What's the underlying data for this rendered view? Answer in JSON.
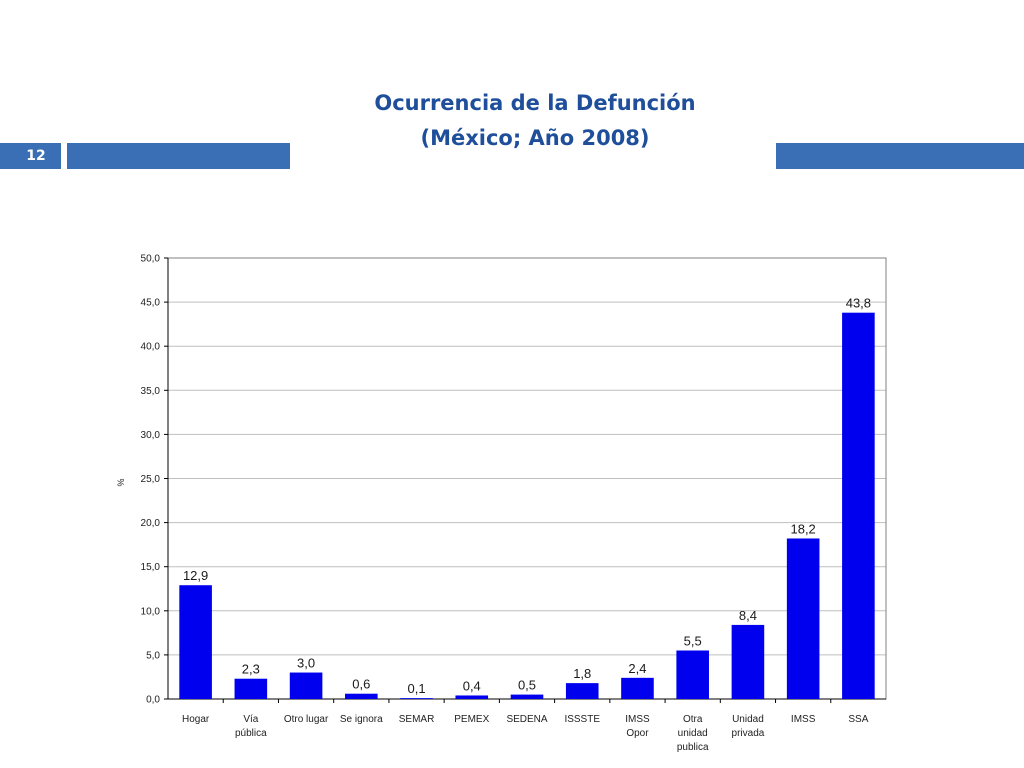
{
  "slide": {
    "number": "12"
  },
  "title": {
    "line1": "Ocurrencia de la Defunción",
    "line2": "(México; Año 2008)"
  },
  "colors": {
    "bar": "#0000ee",
    "band": "#3a6fb5",
    "title": "#1f4e9a",
    "grid": "#bfbfbf"
  },
  "chart_data": {
    "type": "bar",
    "categories": [
      [
        "Hogar"
      ],
      [
        "Vía",
        "pública"
      ],
      [
        "Otro lugar"
      ],
      [
        "Se ignora"
      ],
      [
        "SEMAR"
      ],
      [
        "PEMEX"
      ],
      [
        "SEDENA"
      ],
      [
        "ISSSTE"
      ],
      [
        "IMSS",
        "Opor"
      ],
      [
        "Otra",
        "unidad",
        "publica"
      ],
      [
        "Unidad",
        "privada"
      ],
      [
        "IMSS"
      ],
      [
        "SSA"
      ]
    ],
    "values": [
      12.9,
      2.3,
      3.0,
      0.6,
      0.1,
      0.4,
      0.5,
      1.8,
      2.4,
      5.5,
      8.4,
      18.2,
      43.8
    ],
    "value_labels": [
      "12,9",
      "2,3",
      "3,0",
      "0,6",
      "0,1",
      "0,4",
      "0,5",
      "1,8",
      "2,4",
      "5,5",
      "8,4",
      "18,2",
      "43,8"
    ],
    "y_ticks": [
      "0,0",
      "5,0",
      "10,0",
      "15,0",
      "20,0",
      "25,0",
      "30,0",
      "35,0",
      "40,0",
      "45,0",
      "50,0"
    ],
    "ylabel": "%",
    "xlabel": "",
    "ylim": [
      0,
      50
    ],
    "grid": true
  }
}
